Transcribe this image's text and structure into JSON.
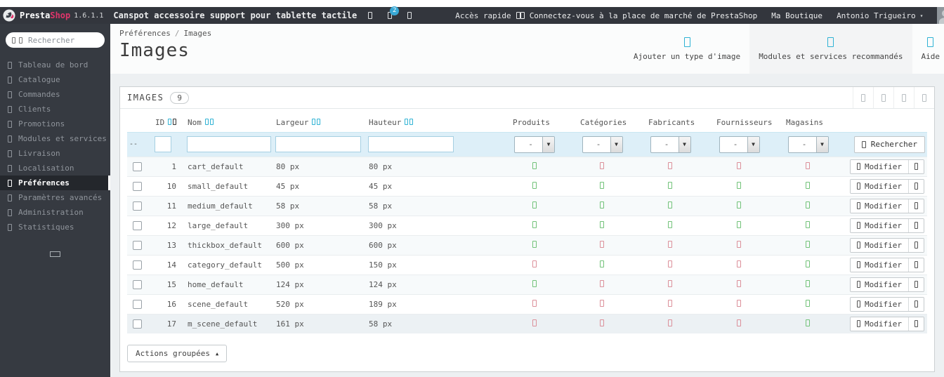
{
  "topbar": {
    "brand_presta": "Presta",
    "brand_shop": "Shop",
    "version": "1.6.1.1",
    "shop_name": "Canspot accessoire support pour tablette tactile",
    "notification_badge": "2",
    "quick_access": "Accès rapide",
    "marketplace_link": "Connectez-vous à la place de marché de PrestaShop",
    "my_shop": "Ma Boutique",
    "user_name": "Antonio Trigueiro"
  },
  "sidebar": {
    "search_placeholder": "Rechercher",
    "items": [
      {
        "label": "Tableau de bord"
      },
      {
        "label": "Catalogue"
      },
      {
        "label": "Commandes"
      },
      {
        "label": "Clients"
      },
      {
        "label": "Promotions"
      },
      {
        "label": "Modules et services"
      },
      {
        "label": "Livraison"
      },
      {
        "label": "Localisation"
      },
      {
        "label": "Préférences",
        "active": true
      },
      {
        "label": "Paramètres avancés"
      },
      {
        "label": "Administration"
      },
      {
        "label": "Statistiques"
      }
    ]
  },
  "header": {
    "breadcrumb": {
      "parent": "Préférences",
      "current": "Images"
    },
    "title": "Images",
    "actions": {
      "add": "Ajouter un type d'image",
      "recommended": "Modules et services recommandés",
      "help": "Aide"
    }
  },
  "panel": {
    "title": "IMAGES",
    "count": "9",
    "filter": {
      "range_placeholder": "--",
      "select_value": "-",
      "search_label": "Rechercher"
    },
    "table": {
      "columns": [
        "ID",
        "Nom",
        "Largeur",
        "Hauteur",
        "Produits",
        "Catégories",
        "Fabricants",
        "Fournisseurs",
        "Magasins"
      ],
      "edit_label": "Modifier",
      "rows": [
        {
          "id": "1",
          "name": "cart_default",
          "width": "80 px",
          "height": "80 px",
          "flags": [
            true,
            false,
            false,
            false,
            false
          ]
        },
        {
          "id": "10",
          "name": "small_default",
          "width": "45 px",
          "height": "45 px",
          "flags": [
            true,
            true,
            true,
            true,
            true
          ]
        },
        {
          "id": "11",
          "name": "medium_default",
          "width": "58 px",
          "height": "58 px",
          "flags": [
            true,
            true,
            true,
            true,
            true
          ]
        },
        {
          "id": "12",
          "name": "large_default",
          "width": "300 px",
          "height": "300 px",
          "flags": [
            true,
            true,
            true,
            true,
            true
          ]
        },
        {
          "id": "13",
          "name": "thickbox_default",
          "width": "600 px",
          "height": "600 px",
          "flags": [
            true,
            false,
            false,
            false,
            true
          ]
        },
        {
          "id": "14",
          "name": "category_default",
          "width": "500 px",
          "height": "150 px",
          "flags": [
            false,
            true,
            false,
            false,
            true
          ]
        },
        {
          "id": "15",
          "name": "home_default",
          "width": "124 px",
          "height": "124 px",
          "flags": [
            true,
            false,
            false,
            false,
            true
          ]
        },
        {
          "id": "16",
          "name": "scene_default",
          "width": "520 px",
          "height": "189 px",
          "flags": [
            false,
            false,
            false,
            false,
            true
          ]
        },
        {
          "id": "17",
          "name": "m_scene_default",
          "width": "161 px",
          "height": "58 px",
          "flags": [
            false,
            false,
            false,
            false,
            true
          ]
        }
      ]
    },
    "bulk_actions_label": "Actions groupées"
  },
  "colors": {
    "accent_teal": "#2eb2d4",
    "brand_pink": "#e0356b",
    "flag_true": "#72c279",
    "flag_false": "#dc909a",
    "topbar_bg": "#33363d",
    "sidebar_bg": "#363a41",
    "filter_row_bg": "#ddeff8",
    "notification_badge_bg": "#39a9d6"
  }
}
